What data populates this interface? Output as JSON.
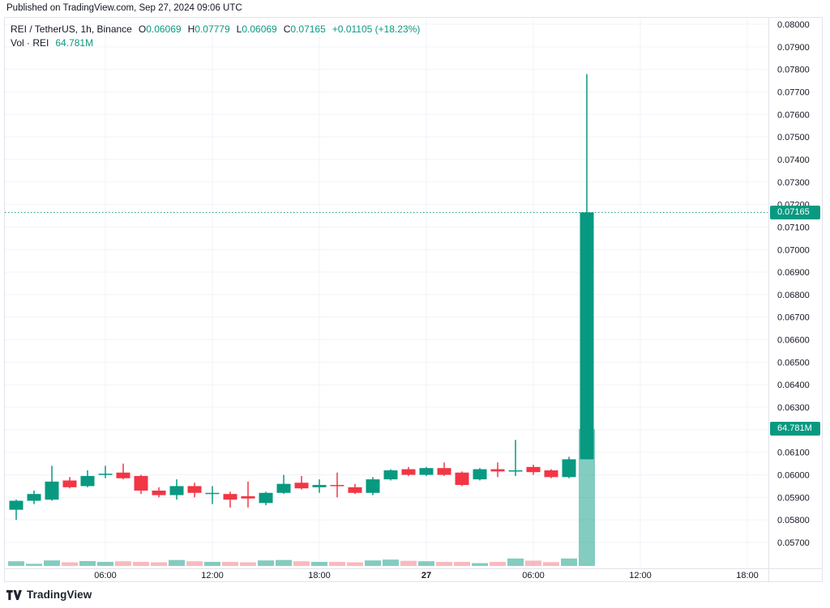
{
  "published": "Published on TradingView.com, Sep 27, 2024 09:06 UTC",
  "legend": {
    "symbol": "REI / TetherUS, 1h, Binance",
    "ohlc": [
      {
        "label": "O",
        "value": "0.06069"
      },
      {
        "label": "H",
        "value": "0.07779"
      },
      {
        "label": "L",
        "value": "0.06069"
      },
      {
        "label": "C",
        "value": "0.07165"
      }
    ],
    "change": "+0.01105 (+18.23%)",
    "volume_label": "Vol · REI",
    "volume_value": "64.781M"
  },
  "price_axis": {
    "current_price_badge": "0.07165",
    "volume_badge": "64.781M"
  },
  "footer": {
    "brand": "TradingView"
  },
  "colors": {
    "up": "#089981",
    "down": "#f23645",
    "vol_up": "rgba(8,153,129,0.5)",
    "vol_down": "rgba(242,54,69,0.35)",
    "grid": "#f0f3fa",
    "frame": "#e0e3eb",
    "text": "#131722",
    "badge_bg": "#089981",
    "dotted_line": "#089981"
  },
  "chart_data": {
    "type": "candlestick",
    "title": "REI / TetherUS, 1h, Binance",
    "legend_position": "top-left",
    "grid": true,
    "price_axis": {
      "min": 0.057,
      "max": 0.08,
      "tick_labels": [
        "0.08000",
        "0.07900",
        "0.07800",
        "0.07700",
        "0.07600",
        "0.07500",
        "0.07400",
        "0.07300",
        "0.07200",
        "0.07100",
        "0.07000",
        "0.06900",
        "0.06800",
        "0.06700",
        "0.06600",
        "0.06500",
        "0.06400",
        "0.06300",
        "0.06200",
        "0.06100",
        "0.06000",
        "0.05900",
        "0.05800",
        "0.05700"
      ]
    },
    "time_ticks": [
      {
        "label": "06:00",
        "i": 5,
        "bold": false
      },
      {
        "label": "12:00",
        "i": 11,
        "bold": false
      },
      {
        "label": "18:00",
        "i": 17,
        "bold": false
      },
      {
        "label": "27",
        "i": 23,
        "bold": true
      },
      {
        "label": "06:00",
        "i": 29,
        "bold": false
      },
      {
        "label": "12:00",
        "i": 35,
        "bold": false
      },
      {
        "label": "18:00",
        "i": 41,
        "bold": false
      }
    ],
    "last_price": 0.07165,
    "total_volume_label": "64.781M",
    "candles": [
      {
        "t": "26 01:00",
        "o": 0.05845,
        "h": 0.0589,
        "l": 0.058,
        "c": 0.05885,
        "v": 2.2
      },
      {
        "t": "26 02:00",
        "o": 0.05885,
        "h": 0.0593,
        "l": 0.0587,
        "c": 0.05915,
        "v": 1.0
      },
      {
        "t": "26 03:00",
        "o": 0.0589,
        "h": 0.0604,
        "l": 0.05885,
        "c": 0.0597,
        "v": 2.6
      },
      {
        "t": "26 04:00",
        "o": 0.05975,
        "h": 0.0599,
        "l": 0.0594,
        "c": 0.05945,
        "v": 1.7
      },
      {
        "t": "26 05:00",
        "o": 0.0595,
        "h": 0.0602,
        "l": 0.05945,
        "c": 0.05995,
        "v": 2.3
      },
      {
        "t": "26 06:00",
        "o": 0.06,
        "h": 0.0604,
        "l": 0.05985,
        "c": 0.06005,
        "v": 1.9
      },
      {
        "t": "26 07:00",
        "o": 0.0601,
        "h": 0.0605,
        "l": 0.0598,
        "c": 0.05985,
        "v": 2.2
      },
      {
        "t": "26 08:00",
        "o": 0.05995,
        "h": 0.06,
        "l": 0.05915,
        "c": 0.0593,
        "v": 1.9
      },
      {
        "t": "26 09:00",
        "o": 0.0593,
        "h": 0.05945,
        "l": 0.059,
        "c": 0.0591,
        "v": 1.7
      },
      {
        "t": "26 10:00",
        "o": 0.0591,
        "h": 0.0598,
        "l": 0.0589,
        "c": 0.0595,
        "v": 2.8
      },
      {
        "t": "26 11:00",
        "o": 0.0595,
        "h": 0.05965,
        "l": 0.059,
        "c": 0.0592,
        "v": 2.2
      },
      {
        "t": "26 12:00",
        "o": 0.05915,
        "h": 0.0595,
        "l": 0.0587,
        "c": 0.0592,
        "v": 1.9
      },
      {
        "t": "26 13:00",
        "o": 0.05915,
        "h": 0.05925,
        "l": 0.05855,
        "c": 0.0589,
        "v": 1.9
      },
      {
        "t": "26 14:00",
        "o": 0.05905,
        "h": 0.0597,
        "l": 0.05855,
        "c": 0.05895,
        "v": 1.7
      },
      {
        "t": "26 15:00",
        "o": 0.05875,
        "h": 0.05925,
        "l": 0.05865,
        "c": 0.0592,
        "v": 2.6
      },
      {
        "t": "26 16:00",
        "o": 0.0592,
        "h": 0.06,
        "l": 0.05915,
        "c": 0.0596,
        "v": 2.8
      },
      {
        "t": "26 17:00",
        "o": 0.05965,
        "h": 0.05995,
        "l": 0.05935,
        "c": 0.0594,
        "v": 2.2
      },
      {
        "t": "26 18:00",
        "o": 0.05945,
        "h": 0.0598,
        "l": 0.0592,
        "c": 0.05955,
        "v": 1.9
      },
      {
        "t": "26 19:00",
        "o": 0.05955,
        "h": 0.0601,
        "l": 0.059,
        "c": 0.0595,
        "v": 1.9
      },
      {
        "t": "26 20:00",
        "o": 0.05945,
        "h": 0.0596,
        "l": 0.05915,
        "c": 0.0592,
        "v": 1.7
      },
      {
        "t": "26 21:00",
        "o": 0.0592,
        "h": 0.0599,
        "l": 0.0591,
        "c": 0.0598,
        "v": 2.6
      },
      {
        "t": "26 22:00",
        "o": 0.0598,
        "h": 0.06025,
        "l": 0.05975,
        "c": 0.0602,
        "v": 3.0
      },
      {
        "t": "26 23:00",
        "o": 0.06025,
        "h": 0.06035,
        "l": 0.05995,
        "c": 0.06,
        "v": 2.4
      },
      {
        "t": "27 00:00",
        "o": 0.06,
        "h": 0.06035,
        "l": 0.05995,
        "c": 0.0603,
        "v": 2.2
      },
      {
        "t": "27 01:00",
        "o": 0.0603,
        "h": 0.06055,
        "l": 0.05995,
        "c": 0.06,
        "v": 1.9
      },
      {
        "t": "27 02:00",
        "o": 0.0601,
        "h": 0.06015,
        "l": 0.0595,
        "c": 0.05955,
        "v": 1.9
      },
      {
        "t": "27 03:00",
        "o": 0.0598,
        "h": 0.0603,
        "l": 0.05975,
        "c": 0.06025,
        "v": 1.3
      },
      {
        "t": "27 04:00",
        "o": 0.06025,
        "h": 0.06055,
        "l": 0.0599,
        "c": 0.06015,
        "v": 1.9
      },
      {
        "t": "27 05:00",
        "o": 0.06015,
        "h": 0.06155,
        "l": 0.05995,
        "c": 0.0602,
        "v": 3.5
      },
      {
        "t": "27 06:00",
        "o": 0.06035,
        "h": 0.06045,
        "l": 0.06,
        "c": 0.06012,
        "v": 2.5
      },
      {
        "t": "27 07:00",
        "o": 0.0602,
        "h": 0.06025,
        "l": 0.05985,
        "c": 0.0599,
        "v": 1.8
      },
      {
        "t": "27 08:00",
        "o": 0.0599,
        "h": 0.0608,
        "l": 0.05985,
        "c": 0.06069,
        "v": 3.5
      },
      {
        "t": "27 09:00",
        "o": 0.06069,
        "h": 0.07779,
        "l": 0.06069,
        "c": 0.07165,
        "v": 64.781
      }
    ]
  }
}
